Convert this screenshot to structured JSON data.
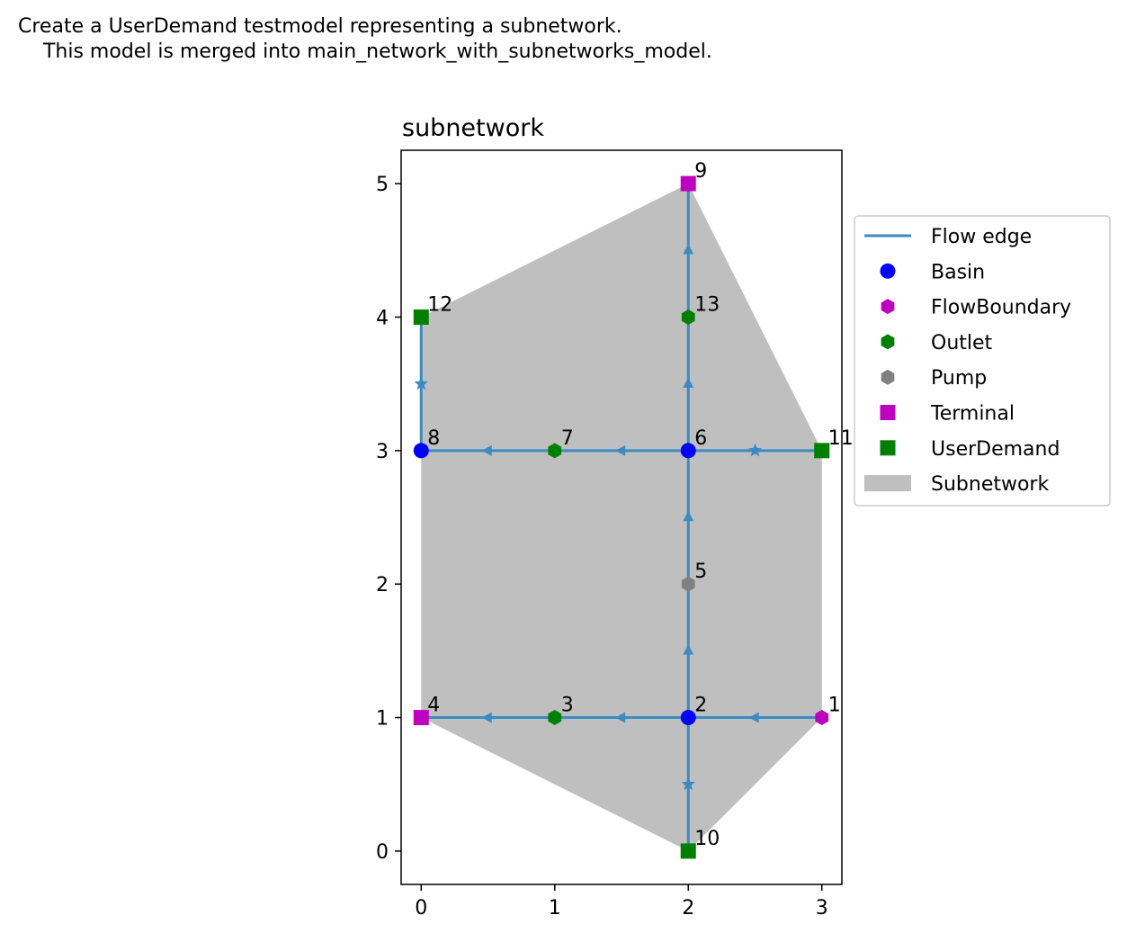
{
  "figure": {
    "suptitle": "Create a UserDemand testmodel representing a subnetwork.\n    This model is merged into main_network_with_subnetworks_model."
  },
  "chart_data": {
    "type": "scatter",
    "title": "subnetwork",
    "xlabel": "",
    "ylabel": "",
    "xlim": [
      -0.15,
      3.15
    ],
    "ylim": [
      -0.25,
      5.25
    ],
    "xticks": [
      0,
      1,
      2,
      3
    ],
    "yticks": [
      0,
      1,
      2,
      3,
      4,
      5
    ],
    "grid": false,
    "legend_placement": "outside-right",
    "legend": [
      {
        "label": "Flow edge",
        "kind": "line",
        "color": "#3b8bc2"
      },
      {
        "label": "Basin",
        "kind": "circle",
        "color": "#0000ff"
      },
      {
        "label": "FlowBoundary",
        "kind": "hexagon",
        "color": "#c000c0"
      },
      {
        "label": "Outlet",
        "kind": "hexagon",
        "color": "#008000"
      },
      {
        "label": "Pump",
        "kind": "hexagon",
        "color": "#808080"
      },
      {
        "label": "Terminal",
        "kind": "square",
        "color": "#c000c0"
      },
      {
        "label": "UserDemand",
        "kind": "square",
        "color": "#008000"
      },
      {
        "label": "Subnetwork",
        "kind": "patch",
        "color": "#bfbfbf"
      }
    ],
    "subnetwork_polygon": [
      [
        2,
        0
      ],
      [
        0,
        1
      ],
      [
        0,
        4
      ],
      [
        2,
        5
      ],
      [
        3,
        3
      ],
      [
        3,
        1
      ]
    ],
    "nodes": [
      {
        "id": "1",
        "type": "FlowBoundary",
        "x": 3,
        "y": 1
      },
      {
        "id": "2",
        "type": "Basin",
        "x": 2,
        "y": 1
      },
      {
        "id": "3",
        "type": "Outlet",
        "x": 1,
        "y": 1
      },
      {
        "id": "4",
        "type": "Terminal",
        "x": 0,
        "y": 1
      },
      {
        "id": "5",
        "type": "Pump",
        "x": 2,
        "y": 2
      },
      {
        "id": "6",
        "type": "Basin",
        "x": 2,
        "y": 3
      },
      {
        "id": "7",
        "type": "Outlet",
        "x": 1,
        "y": 3
      },
      {
        "id": "8",
        "type": "Basin",
        "x": 0,
        "y": 3
      },
      {
        "id": "9",
        "type": "Terminal",
        "x": 2,
        "y": 5
      },
      {
        "id": "10",
        "type": "UserDemand",
        "x": 2,
        "y": 0
      },
      {
        "id": "11",
        "type": "UserDemand",
        "x": 3,
        "y": 3
      },
      {
        "id": "12",
        "type": "UserDemand",
        "x": 0,
        "y": 4
      },
      {
        "id": "13",
        "type": "Outlet",
        "x": 2,
        "y": 4
      }
    ],
    "edges": [
      {
        "from": "1",
        "to": "2",
        "marker": "triangle"
      },
      {
        "from": "2",
        "to": "3",
        "marker": "triangle"
      },
      {
        "from": "3",
        "to": "4",
        "marker": "triangle"
      },
      {
        "from": "2",
        "to": "5",
        "marker": "triangle"
      },
      {
        "from": "5",
        "to": "6",
        "marker": "triangle"
      },
      {
        "from": "6",
        "to": "7",
        "marker": "triangle"
      },
      {
        "from": "7",
        "to": "8",
        "marker": "triangle"
      },
      {
        "from": "6",
        "to": "13",
        "marker": "triangle"
      },
      {
        "from": "13",
        "to": "9",
        "marker": "triangle"
      },
      {
        "from": "2",
        "to": "10",
        "marker": "star"
      },
      {
        "from": "6",
        "to": "11",
        "marker": "star"
      },
      {
        "from": "8",
        "to": "12",
        "marker": "star"
      }
    ],
    "node_styles": {
      "Basin": {
        "shape": "circle",
        "color": "#0000ff"
      },
      "FlowBoundary": {
        "shape": "hexagon",
        "color": "#c000c0"
      },
      "Outlet": {
        "shape": "hexagon",
        "color": "#008000"
      },
      "Pump": {
        "shape": "hexagon",
        "color": "#808080"
      },
      "Terminal": {
        "shape": "square",
        "color": "#c000c0"
      },
      "UserDemand": {
        "shape": "square",
        "color": "#008000"
      }
    },
    "edge_color": "#3b8bc2",
    "subnetwork_color": "#bfbfbf"
  }
}
